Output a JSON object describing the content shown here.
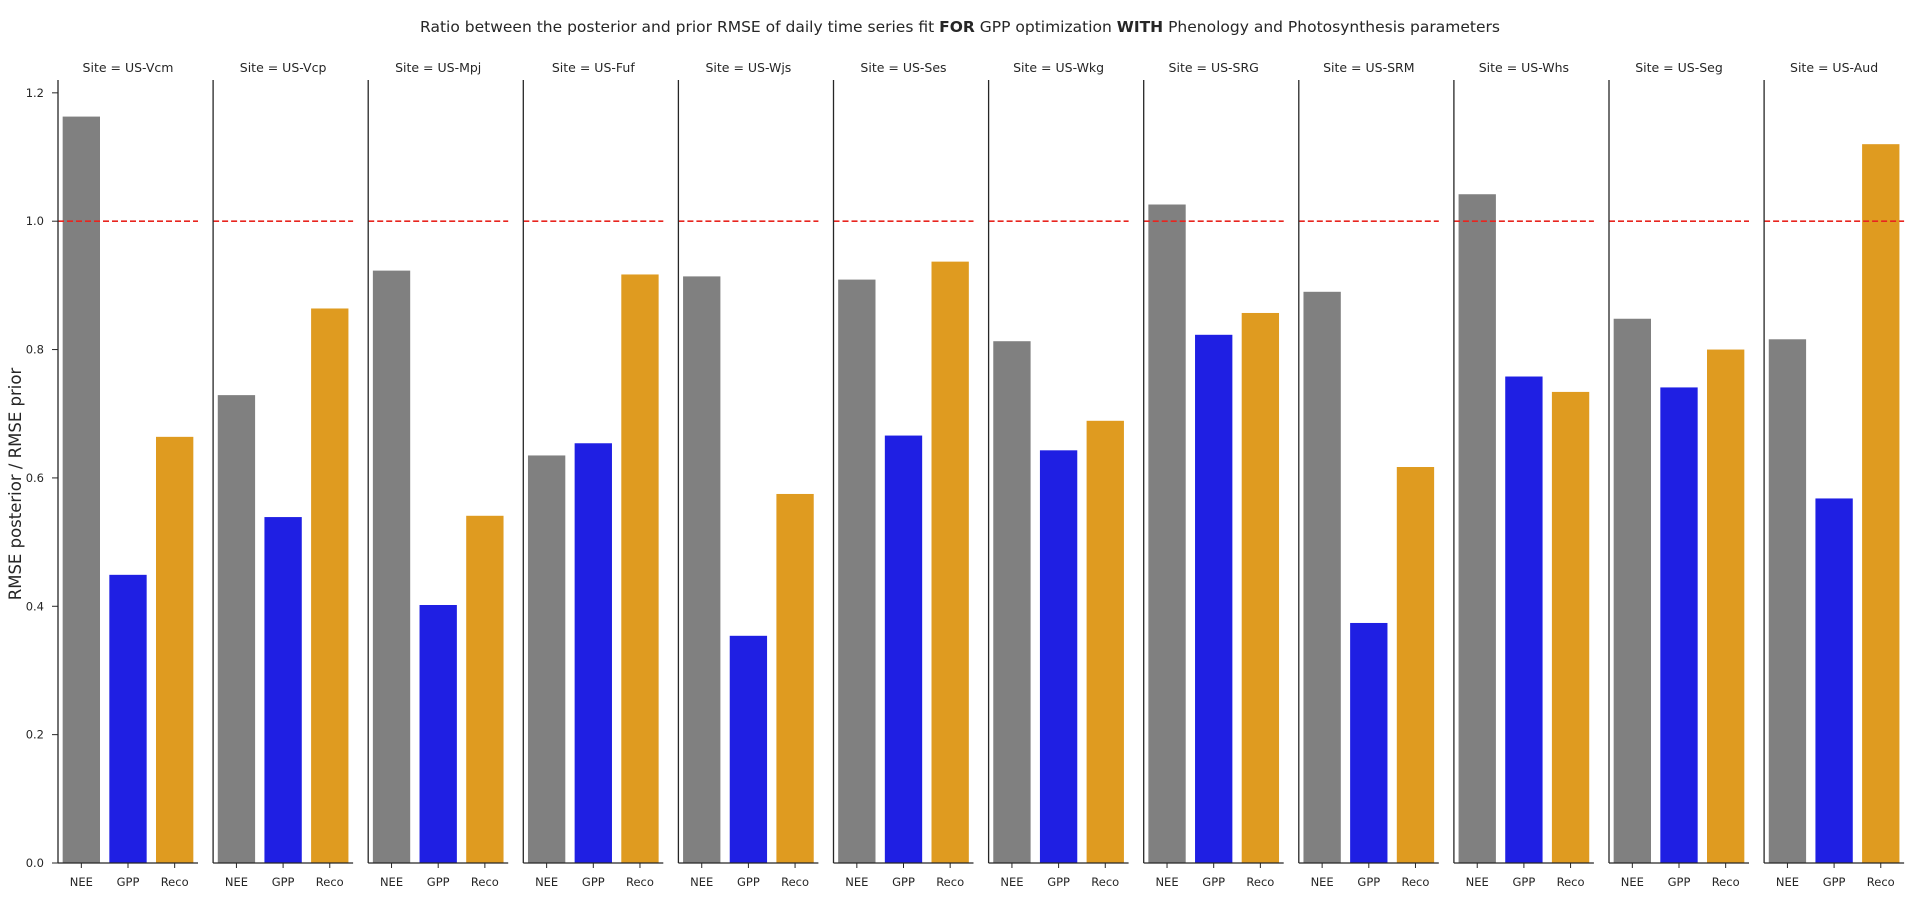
{
  "chart_data": {
    "type": "bar",
    "title_parts": [
      {
        "text": "Ratio between the posterior and prior RMSE of daily time series fit ",
        "bold": false
      },
      {
        "text": "FOR",
        "bold": true
      },
      {
        "text": " GPP optimization ",
        "bold": false
      },
      {
        "text": "WITH",
        "bold": true
      },
      {
        "text": " Phenology and Photosynthesis parameters",
        "bold": false
      }
    ],
    "ylabel": "RMSE posterior / RMSE prior",
    "xlabel": "",
    "ylim": [
      0,
      1.22
    ],
    "yticks": [
      "0.0",
      "0.2",
      "0.4",
      "0.6",
      "0.8",
      "1.0",
      "1.2"
    ],
    "reference_line": {
      "y": 1.0,
      "color": "#e8251f",
      "style": "dashed"
    },
    "categories": [
      "NEE",
      "GPP",
      "Reco"
    ],
    "category_colors": {
      "NEE": "#808080",
      "GPP": "#1f1fe3",
      "Reco": "#df9b20"
    },
    "grid": false,
    "facets": [
      {
        "title": "Site = US-Vcm",
        "values": [
          1.163,
          0.449,
          0.664
        ]
      },
      {
        "title": "Site = US-Vcp",
        "values": [
          0.729,
          0.539,
          0.864
        ]
      },
      {
        "title": "Site = US-Mpj",
        "values": [
          0.923,
          0.402,
          0.541
        ]
      },
      {
        "title": "Site = US-Fuf",
        "values": [
          0.635,
          0.654,
          0.917
        ]
      },
      {
        "title": "Site = US-Wjs",
        "values": [
          0.914,
          0.354,
          0.575
        ]
      },
      {
        "title": "Site = US-Ses",
        "values": [
          0.909,
          0.666,
          0.937
        ]
      },
      {
        "title": "Site = US-Wkg",
        "values": [
          0.813,
          0.643,
          0.689
        ]
      },
      {
        "title": "Site = US-SRG",
        "values": [
          1.026,
          0.823,
          0.857
        ]
      },
      {
        "title": "Site = US-SRM",
        "values": [
          0.89,
          0.374,
          0.617
        ]
      },
      {
        "title": "Site = US-Whs",
        "values": [
          1.042,
          0.758,
          0.734
        ]
      },
      {
        "title": "Site = US-Seg",
        "values": [
          0.848,
          0.741,
          0.8
        ]
      },
      {
        "title": "Site = US-Aud",
        "values": [
          0.816,
          0.568,
          1.12
        ]
      }
    ]
  }
}
